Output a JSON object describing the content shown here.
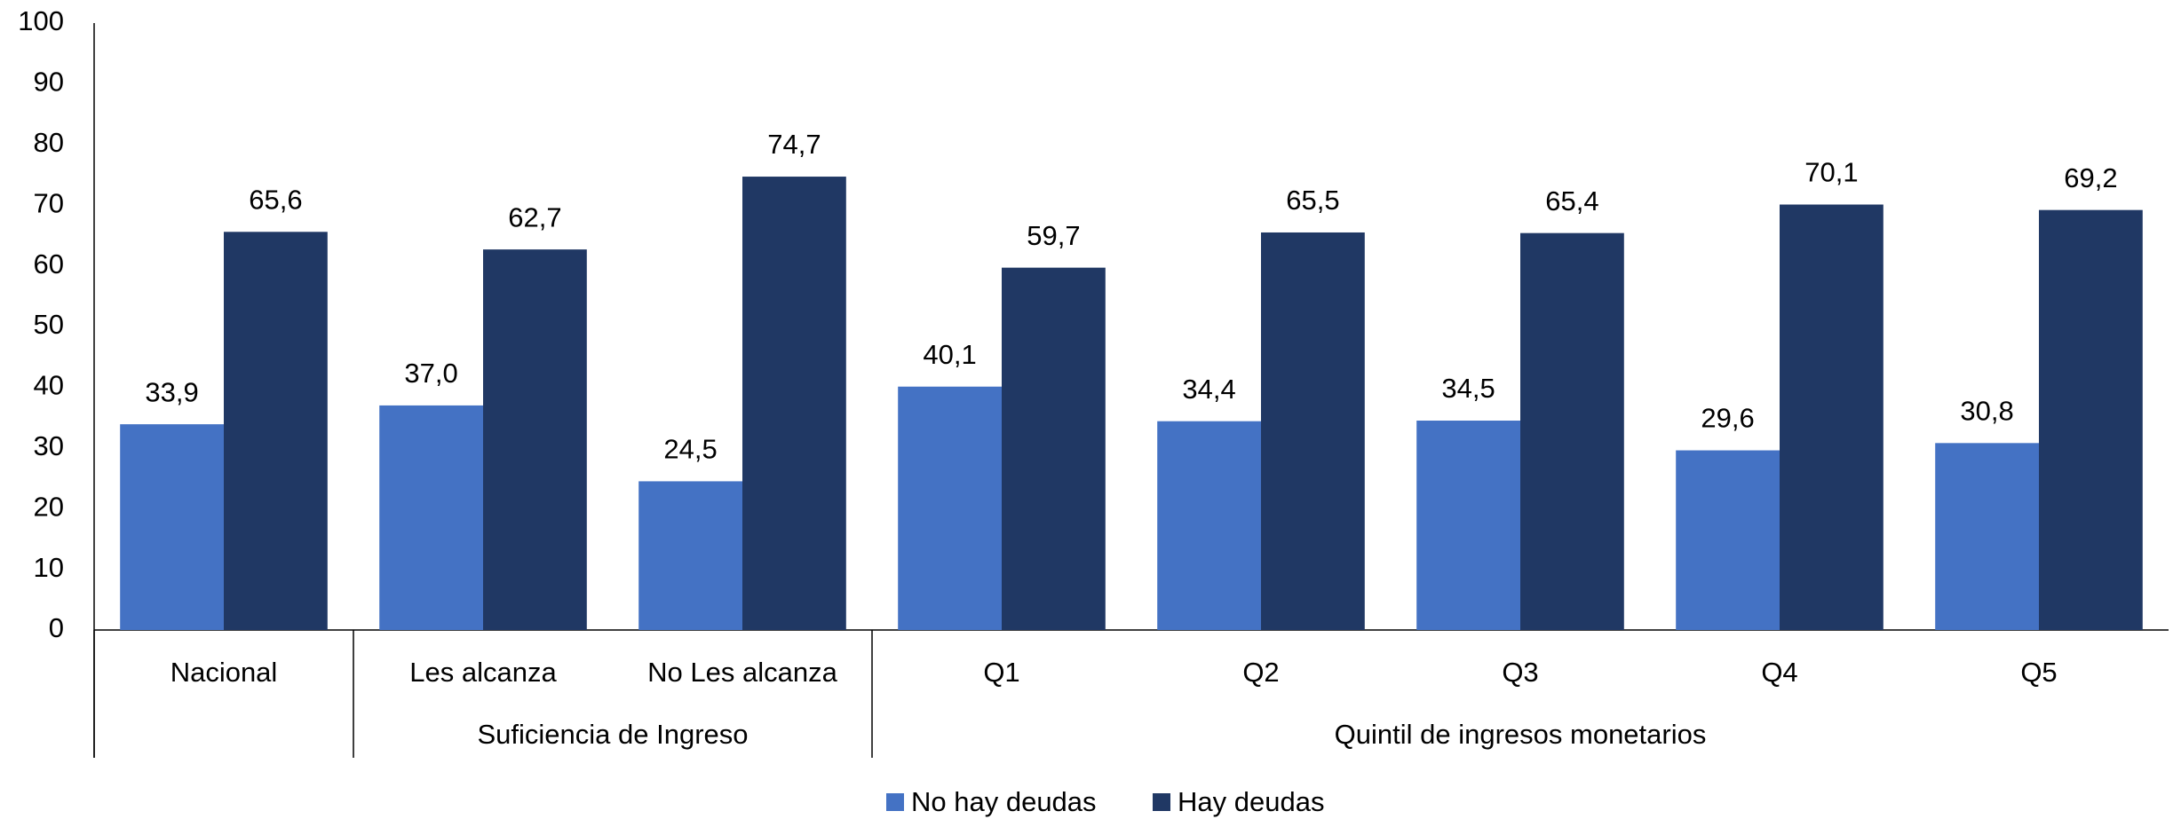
{
  "chart_data": {
    "type": "bar",
    "categories": [
      "Nacional",
      "Les alcanza",
      "No Les alcanza",
      "Q1",
      "Q2",
      "Q3",
      "Q4",
      "Q5"
    ],
    "group_labels": [
      null,
      "Suficiencia de Ingreso",
      "Suficiencia de Ingreso",
      "Quintil de ingresos monetarios",
      "Quintil de ingresos monetarios",
      "Quintil de ingresos monetarios",
      "Quintil de ingresos monetarios",
      "Quintil de ingresos monetarios"
    ],
    "series": [
      {
        "name": "No hay deudas",
        "color": "#4472c4",
        "values": [
          33.9,
          37.0,
          24.5,
          40.1,
          34.4,
          34.5,
          29.6,
          30.8
        ],
        "value_labels": [
          "33,9",
          "37,0",
          "24,5",
          "40,1",
          "34,4",
          "34,5",
          "29,6",
          "30,8"
        ]
      },
      {
        "name": "Hay deudas",
        "color": "#203864",
        "values": [
          65.6,
          62.7,
          74.7,
          59.7,
          65.5,
          65.4,
          70.1,
          69.2
        ],
        "value_labels": [
          "65,6",
          "62,7",
          "74,7",
          "59,7",
          "65,5",
          "65,4",
          "70,1",
          "69,2"
        ]
      }
    ],
    "ylim": [
      0,
      100
    ],
    "yticks": [
      0,
      10,
      20,
      30,
      40,
      50,
      60,
      70,
      80,
      90,
      100
    ],
    "grid": false,
    "legend": "bottom"
  }
}
